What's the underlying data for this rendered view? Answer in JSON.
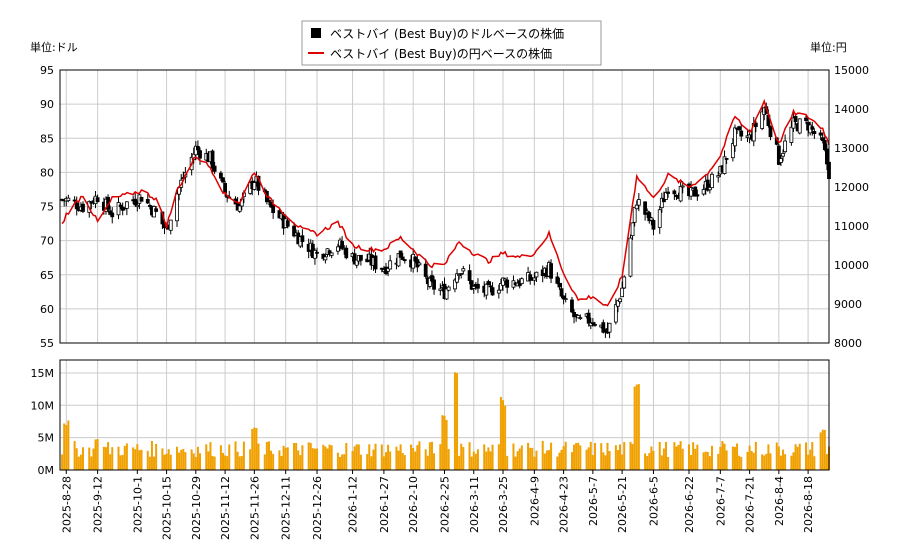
{
  "legend": {
    "items": [
      {
        "label": "ベストバイ (Best Buy)のドルベースの株価",
        "color": "#000000"
      },
      {
        "label": "ベストバイ (Best Buy)の円ベースの株価",
        "color": "#dd0000"
      }
    ]
  },
  "units": {
    "left": "単位:ドル",
    "right": "単位:円"
  },
  "chart_data": [
    {
      "type": "candlestick",
      "x_label": "",
      "y_left": {
        "ticks": [
          55,
          60,
          65,
          70,
          75,
          80,
          85,
          90,
          95
        ],
        "range": [
          55,
          95
        ]
      },
      "y_right": {
        "ticks": [
          8000,
          9000,
          10000,
          11000,
          12000,
          13000,
          14000,
          15000
        ],
        "range": [
          8000,
          15000
        ]
      },
      "x_range": [
        "2025-08-25",
        "2026-08-28"
      ],
      "x_ticks": [
        "2025-8-28",
        "2025-9-12",
        "2025-10-1",
        "2025-10-15",
        "2025-10-29",
        "2025-11-12",
        "2025-11-26",
        "2025-12-11",
        "2025-12-26",
        "2026-1-12",
        "2026-1-27",
        "2026-2-10",
        "2026-2-25",
        "2026-3-11",
        "2026-3-25",
        "2026-4-9",
        "2026-4-23",
        "2026-5-7",
        "2026-5-21",
        "2026-6-5",
        "2026-6-22",
        "2026-7-7",
        "2026-7-21",
        "2026-8-4",
        "2026-8-18"
      ],
      "grid": true,
      "legend_position": "top-center",
      "series": [
        {
          "name": "ベストバイ (Best Buy)のドルベースの株価",
          "color": "#000000",
          "approx_close": [
            [
              "2025-08-28",
              76
            ],
            [
              "2025-09-05",
              75
            ],
            [
              "2025-09-12",
              76.5
            ],
            [
              "2025-09-19",
              74
            ],
            [
              "2025-09-26",
              75.5
            ],
            [
              "2025-10-03",
              76.5
            ],
            [
              "2025-10-10",
              74
            ],
            [
              "2025-10-15",
              71.5
            ],
            [
              "2025-10-20",
              77
            ],
            [
              "2025-10-24",
              80
            ],
            [
              "2025-10-29",
              83.5
            ],
            [
              "2025-11-05",
              82
            ],
            [
              "2025-11-12",
              77
            ],
            [
              "2025-11-19",
              75
            ],
            [
              "2025-11-26",
              79
            ],
            [
              "2025-12-03",
              75
            ],
            [
              "2025-12-11",
              72.5
            ],
            [
              "2025-12-19",
              70
            ],
            [
              "2025-12-26",
              68
            ],
            [
              "2026-01-05",
              69.5
            ],
            [
              "2026-01-12",
              67.5
            ],
            [
              "2026-01-20",
              67
            ],
            [
              "2026-01-27",
              66
            ],
            [
              "2026-02-04",
              68
            ],
            [
              "2026-02-10",
              67
            ],
            [
              "2026-02-18",
              63.5
            ],
            [
              "2026-02-25",
              62.5
            ],
            [
              "2026-03-04",
              66
            ],
            [
              "2026-03-11",
              63
            ],
            [
              "2026-03-18",
              62.5
            ],
            [
              "2026-03-25",
              64
            ],
            [
              "2026-04-02",
              64
            ],
            [
              "2026-04-09",
              64.5
            ],
            [
              "2026-04-16",
              66
            ],
            [
              "2026-04-23",
              61
            ],
            [
              "2026-04-30",
              58
            ],
            [
              "2026-05-07",
              58.5
            ],
            [
              "2026-05-14",
              56.5
            ],
            [
              "2026-05-21",
              63
            ],
            [
              "2026-05-28",
              76
            ],
            [
              "2026-06-05",
              72
            ],
            [
              "2026-06-12",
              78
            ],
            [
              "2026-06-22",
              76.5
            ],
            [
              "2026-06-30",
              78
            ],
            [
              "2026-07-07",
              80
            ],
            [
              "2026-07-14",
              85.5
            ],
            [
              "2026-07-21",
              85
            ],
            [
              "2026-07-28",
              89.5
            ],
            [
              "2026-08-04",
              82
            ],
            [
              "2026-08-11",
              87
            ],
            [
              "2026-08-18",
              87
            ],
            [
              "2026-08-25",
              84
            ],
            [
              "2026-08-28",
              80
            ]
          ]
        },
        {
          "name": "ベストバイ (Best Buy)の円ベースの株価",
          "color": "#dd0000",
          "approx_values": [
            [
              "2025-08-25",
              10900
            ],
            [
              "2025-08-28",
              11300
            ],
            [
              "2025-09-05",
              11800
            ],
            [
              "2025-09-12",
              11100
            ],
            [
              "2025-09-19",
              11700
            ],
            [
              "2025-09-26",
              11800
            ],
            [
              "2025-10-03",
              11900
            ],
            [
              "2025-10-10",
              11700
            ],
            [
              "2025-10-15",
              11000
            ],
            [
              "2025-10-20",
              11900
            ],
            [
              "2025-10-24",
              12300
            ],
            [
              "2025-10-29",
              12800
            ],
            [
              "2025-11-05",
              12500
            ],
            [
              "2025-11-12",
              11800
            ],
            [
              "2025-11-19",
              11600
            ],
            [
              "2025-11-26",
              12400
            ],
            [
              "2025-12-03",
              11700
            ],
            [
              "2025-12-11",
              11300
            ],
            [
              "2025-12-19",
              10900
            ],
            [
              "2025-12-26",
              10800
            ],
            [
              "2026-01-05",
              11100
            ],
            [
              "2026-01-12",
              10500
            ],
            [
              "2026-01-20",
              10400
            ],
            [
              "2026-01-27",
              10400
            ],
            [
              "2026-02-04",
              10700
            ],
            [
              "2026-02-10",
              10400
            ],
            [
              "2026-02-18",
              10000
            ],
            [
              "2026-02-25",
              10000
            ],
            [
              "2026-03-04",
              10600
            ],
            [
              "2026-03-11",
              10300
            ],
            [
              "2026-03-18",
              10100
            ],
            [
              "2026-03-25",
              10300
            ],
            [
              "2026-04-02",
              10200
            ],
            [
              "2026-04-09",
              10300
            ],
            [
              "2026-04-16",
              10800
            ],
            [
              "2026-04-23",
              9800
            ],
            [
              "2026-04-30",
              9100
            ],
            [
              "2026-05-07",
              9200
            ],
            [
              "2026-05-14",
              8900
            ],
            [
              "2026-05-21",
              9700
            ],
            [
              "2026-05-28",
              12300
            ],
            [
              "2026-06-05",
              11700
            ],
            [
              "2026-06-12",
              12300
            ],
            [
              "2026-06-22",
              12000
            ],
            [
              "2026-06-30",
              12300
            ],
            [
              "2026-07-07",
              12800
            ],
            [
              "2026-07-14",
              13800
            ],
            [
              "2026-07-21",
              13400
            ],
            [
              "2026-07-28",
              14200
            ],
            [
              "2026-08-04",
              13100
            ],
            [
              "2026-08-11",
              13900
            ],
            [
              "2026-08-18",
              13800
            ],
            [
              "2026-08-25",
              13500
            ],
            [
              "2026-08-28",
              13100
            ]
          ]
        }
      ]
    },
    {
      "type": "bar",
      "title": "",
      "y_ticks": [
        "0M",
        "5M",
        "10M",
        "15M"
      ],
      "y_range": [
        0,
        17
      ],
      "bar_color": "#f0a000",
      "approx_volume_millions": [
        [
          "2025-08-28",
          8
        ],
        [
          "2025-09-05",
          3.5
        ],
        [
          "2025-09-12",
          5.5
        ],
        [
          "2025-09-19",
          2.5
        ],
        [
          "2025-09-26",
          3
        ],
        [
          "2025-10-03",
          3
        ],
        [
          "2025-10-10",
          3
        ],
        [
          "2025-10-15",
          5
        ],
        [
          "2025-10-20",
          3
        ],
        [
          "2025-10-24",
          4
        ],
        [
          "2025-10-29",
          5
        ],
        [
          "2025-11-05",
          3
        ],
        [
          "2025-11-12",
          3
        ],
        [
          "2025-11-19",
          3
        ],
        [
          "2025-11-26",
          7
        ],
        [
          "2025-12-03",
          4
        ],
        [
          "2025-12-11",
          4
        ],
        [
          "2025-12-19",
          3
        ],
        [
          "2025-12-26",
          3
        ],
        [
          "2026-01-05",
          5
        ],
        [
          "2026-01-12",
          4
        ],
        [
          "2026-01-20",
          3
        ],
        [
          "2026-01-27",
          4
        ],
        [
          "2026-02-04",
          4
        ],
        [
          "2026-02-10",
          3
        ],
        [
          "2026-02-18",
          5
        ],
        [
          "2026-02-25",
          9
        ],
        [
          "2026-03-02",
          17
        ],
        [
          "2026-03-11",
          5
        ],
        [
          "2026-03-18",
          3
        ],
        [
          "2026-03-25",
          11.5
        ],
        [
          "2026-04-02",
          3
        ],
        [
          "2026-04-09",
          3
        ],
        [
          "2026-04-16",
          4
        ],
        [
          "2026-04-23",
          3
        ],
        [
          "2026-04-30",
          3
        ],
        [
          "2026-05-07",
          3
        ],
        [
          "2026-05-14",
          3
        ],
        [
          "2026-05-21",
          5
        ],
        [
          "2026-05-28",
          14.5
        ],
        [
          "2026-06-05",
          4
        ],
        [
          "2026-06-12",
          3
        ],
        [
          "2026-06-22",
          3
        ],
        [
          "2026-06-30",
          3
        ],
        [
          "2026-07-07",
          4
        ],
        [
          "2026-07-14",
          4
        ],
        [
          "2026-07-21",
          4
        ],
        [
          "2026-07-28",
          3
        ],
        [
          "2026-08-04",
          4
        ],
        [
          "2026-08-11",
          3
        ],
        [
          "2026-08-18",
          3
        ],
        [
          "2026-08-25",
          6.5
        ],
        [
          "2026-08-28",
          5
        ]
      ]
    }
  ]
}
